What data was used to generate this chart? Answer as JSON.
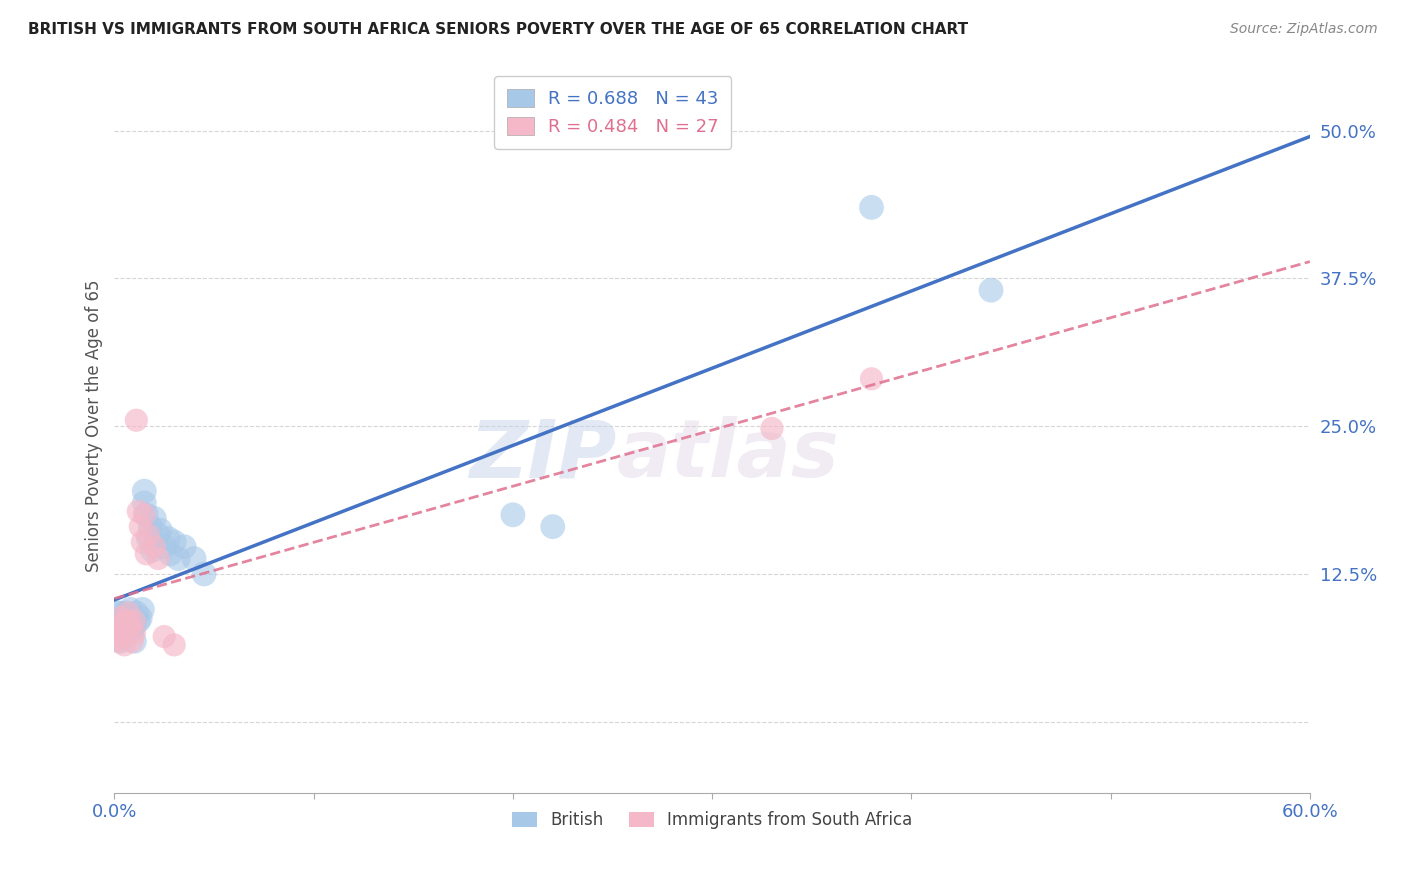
{
  "title": "BRITISH VS IMMIGRANTS FROM SOUTH AFRICA SENIORS POVERTY OVER THE AGE OF 65 CORRELATION CHART",
  "source": "Source: ZipAtlas.com",
  "ylabel": "Seniors Poverty Over the Age of 65",
  "xmin": 0.0,
  "xmax": 0.6,
  "ymin": -0.06,
  "ymax": 0.56,
  "yticks": [
    0.0,
    0.125,
    0.25,
    0.375,
    0.5
  ],
  "ytick_labels": [
    "",
    "12.5%",
    "25.0%",
    "37.5%",
    "50.0%"
  ],
  "xticks": [
    0.0,
    0.1,
    0.2,
    0.3,
    0.4,
    0.5,
    0.6
  ],
  "xtick_labels": [
    "0.0%",
    "",
    "",
    "",
    "",
    "",
    "60.0%"
  ],
  "watermark_zip": "ZIP",
  "watermark_atlas": "atlas",
  "british_color": "#a8c8e8",
  "sa_color": "#f4b8c8",
  "british_line_color": "#4472c4",
  "sa_line_color": "#e07090",
  "tick_color": "#4472c4",
  "grid_color": "#cccccc",
  "british_points": [
    [
      0.001,
      0.085
    ],
    [
      0.002,
      0.078
    ],
    [
      0.002,
      0.092
    ],
    [
      0.003,
      0.068
    ],
    [
      0.003,
      0.075
    ],
    [
      0.004,
      0.082
    ],
    [
      0.004,
      0.072
    ],
    [
      0.005,
      0.08
    ],
    [
      0.005,
      0.088
    ],
    [
      0.006,
      0.075
    ],
    [
      0.006,
      0.092
    ],
    [
      0.007,
      0.085
    ],
    [
      0.008,
      0.078
    ],
    [
      0.008,
      0.095
    ],
    [
      0.009,
      0.088
    ],
    [
      0.009,
      0.078
    ],
    [
      0.01,
      0.082
    ],
    [
      0.01,
      0.068
    ],
    [
      0.011,
      0.092
    ],
    [
      0.012,
      0.085
    ],
    [
      0.013,
      0.088
    ],
    [
      0.014,
      0.095
    ],
    [
      0.015,
      0.185
    ],
    [
      0.015,
      0.195
    ],
    [
      0.016,
      0.175
    ],
    [
      0.017,
      0.155
    ],
    [
      0.018,
      0.165
    ],
    [
      0.019,
      0.145
    ],
    [
      0.02,
      0.172
    ],
    [
      0.022,
      0.158
    ],
    [
      0.023,
      0.162
    ],
    [
      0.025,
      0.148
    ],
    [
      0.027,
      0.155
    ],
    [
      0.028,
      0.142
    ],
    [
      0.03,
      0.152
    ],
    [
      0.032,
      0.138
    ],
    [
      0.035,
      0.148
    ],
    [
      0.04,
      0.138
    ],
    [
      0.045,
      0.125
    ],
    [
      0.2,
      0.175
    ],
    [
      0.22,
      0.165
    ],
    [
      0.38,
      0.435
    ],
    [
      0.44,
      0.365
    ]
  ],
  "sa_points": [
    [
      0.001,
      0.078
    ],
    [
      0.002,
      0.068
    ],
    [
      0.002,
      0.082
    ],
    [
      0.003,
      0.072
    ],
    [
      0.003,
      0.088
    ],
    [
      0.004,
      0.075
    ],
    [
      0.005,
      0.065
    ],
    [
      0.005,
      0.078
    ],
    [
      0.006,
      0.085
    ],
    [
      0.007,
      0.092
    ],
    [
      0.008,
      0.082
    ],
    [
      0.009,
      0.068
    ],
    [
      0.01,
      0.075
    ],
    [
      0.01,
      0.085
    ],
    [
      0.011,
      0.255
    ],
    [
      0.012,
      0.178
    ],
    [
      0.013,
      0.165
    ],
    [
      0.014,
      0.152
    ],
    [
      0.015,
      0.175
    ],
    [
      0.016,
      0.142
    ],
    [
      0.017,
      0.158
    ],
    [
      0.02,
      0.148
    ],
    [
      0.022,
      0.138
    ],
    [
      0.025,
      0.072
    ],
    [
      0.03,
      0.065
    ],
    [
      0.33,
      0.248
    ],
    [
      0.38,
      0.29
    ]
  ],
  "british_large_idx": 0,
  "british_large_size": 800
}
